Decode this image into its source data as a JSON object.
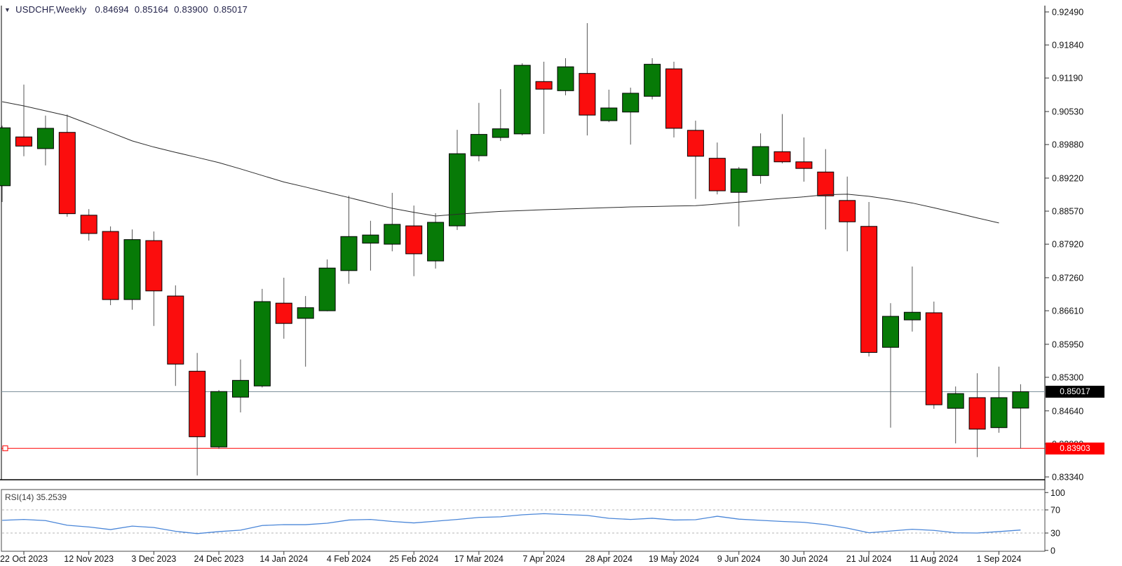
{
  "window": {
    "symbol_timeframe": "USDCHF,Weekly",
    "quote_open": "0.84694",
    "quote_high": "0.85164",
    "quote_low": "0.83900",
    "quote_close": "0.85017"
  },
  "chart_data": {
    "type": "candlestick",
    "title": "USDCHF,Weekly",
    "symbol": "USDCHF",
    "timeframe": "Weekly",
    "price_axis": {
      "ticks": [
        "0.92490",
        "0.91840",
        "0.91190",
        "0.90530",
        "0.89880",
        "0.89220",
        "0.88570",
        "0.87920",
        "0.87260",
        "0.86610",
        "0.85950",
        "0.85300",
        "0.84640",
        "0.83990",
        "0.83340"
      ],
      "max": 0.9249,
      "min": 0.8334
    },
    "bid_line": {
      "price": 0.85017,
      "label": "0.85017",
      "color": "#7d919c",
      "badge_bg": "#000000"
    },
    "level_line": {
      "price": 0.83903,
      "label": "0.83903",
      "color": "#ff0000",
      "badge_bg": "#ff0000"
    },
    "x_labels": [
      "22 Oct 2023",
      "12 Nov 2023",
      "3 Dec 2023",
      "24 Dec 2023",
      "14 Jan 2024",
      "4 Feb 2024",
      "25 Feb 2024",
      "17 Mar 2024",
      "7 Apr 2024",
      "28 Apr 2024",
      "19 May 2024",
      "9 Jun 2024",
      "30 Jun 2024",
      "21 Jul 2024",
      "11 Aug 2024",
      "1 Sep 2024"
    ],
    "x_label_first_index": 1,
    "x_label_every": 3,
    "candles": [
      {
        "date": "15 Oct 2023",
        "o": 0.8907,
        "h": 0.9025,
        "l": 0.8875,
        "c": 0.9021
      },
      {
        "date": "22 Oct 2023",
        "o": 0.9003,
        "h": 0.9106,
        "l": 0.8965,
        "c": 0.8985
      },
      {
        "date": "29 Oct 2023",
        "o": 0.898,
        "h": 0.9045,
        "l": 0.8947,
        "c": 0.902
      },
      {
        "date": "5 Nov 2023",
        "o": 0.9012,
        "h": 0.9047,
        "l": 0.8846,
        "c": 0.8852
      },
      {
        "date": "12 Nov 2023",
        "o": 0.8849,
        "h": 0.8861,
        "l": 0.8799,
        "c": 0.8813
      },
      {
        "date": "19 Nov 2023",
        "o": 0.8817,
        "h": 0.8827,
        "l": 0.8672,
        "c": 0.8683
      },
      {
        "date": "26 Nov 2023",
        "o": 0.8683,
        "h": 0.8821,
        "l": 0.8663,
        "c": 0.8801
      },
      {
        "date": "3 Dec 2023",
        "o": 0.8799,
        "h": 0.8817,
        "l": 0.8631,
        "c": 0.87
      },
      {
        "date": "10 Dec 2023",
        "o": 0.869,
        "h": 0.8711,
        "l": 0.8513,
        "c": 0.8556
      },
      {
        "date": "17 Dec 2023",
        "o": 0.8542,
        "h": 0.8578,
        "l": 0.8337,
        "c": 0.8413
      },
      {
        "date": "24 Dec 2023",
        "o": 0.8393,
        "h": 0.8505,
        "l": 0.8389,
        "c": 0.8502
      },
      {
        "date": "31 Dec 2023",
        "o": 0.8491,
        "h": 0.8565,
        "l": 0.8461,
        "c": 0.8524
      },
      {
        "date": "7 Jan 2024",
        "o": 0.8513,
        "h": 0.8704,
        "l": 0.851,
        "c": 0.8679
      },
      {
        "date": "14 Jan 2024",
        "o": 0.8676,
        "h": 0.8726,
        "l": 0.8606,
        "c": 0.8636
      },
      {
        "date": "21 Jan 2024",
        "o": 0.8646,
        "h": 0.869,
        "l": 0.8551,
        "c": 0.8667
      },
      {
        "date": "28 Jan 2024",
        "o": 0.8661,
        "h": 0.8762,
        "l": 0.866,
        "c": 0.8745
      },
      {
        "date": "4 Feb 2024",
        "o": 0.874,
        "h": 0.8887,
        "l": 0.8714,
        "c": 0.8807
      },
      {
        "date": "11 Feb 2024",
        "o": 0.8794,
        "h": 0.8838,
        "l": 0.874,
        "c": 0.881
      },
      {
        "date": "18 Feb 2024",
        "o": 0.8792,
        "h": 0.8893,
        "l": 0.8778,
        "c": 0.8831
      },
      {
        "date": "25 Feb 2024",
        "o": 0.8828,
        "h": 0.8868,
        "l": 0.8729,
        "c": 0.8773
      },
      {
        "date": "3 Mar 2024",
        "o": 0.8759,
        "h": 0.8853,
        "l": 0.8744,
        "c": 0.8835
      },
      {
        "date": "10 Mar 2024",
        "o": 0.8828,
        "h": 0.9017,
        "l": 0.882,
        "c": 0.897
      },
      {
        "date": "17 Mar 2024",
        "o": 0.8966,
        "h": 0.907,
        "l": 0.8955,
        "c": 0.9008
      },
      {
        "date": "24 Mar 2024",
        "o": 0.9002,
        "h": 0.9097,
        "l": 0.8995,
        "c": 0.9019
      },
      {
        "date": "31 Mar 2024",
        "o": 0.9009,
        "h": 0.9148,
        "l": 0.9006,
        "c": 0.9144
      },
      {
        "date": "7 Apr 2024",
        "o": 0.9112,
        "h": 0.9151,
        "l": 0.9009,
        "c": 0.9097
      },
      {
        "date": "14 Apr 2024",
        "o": 0.9094,
        "h": 0.9158,
        "l": 0.9085,
        "c": 0.9141
      },
      {
        "date": "21 Apr 2024",
        "o": 0.9128,
        "h": 0.9227,
        "l": 0.9006,
        "c": 0.9046
      },
      {
        "date": "28 Apr 2024",
        "o": 0.9035,
        "h": 0.9096,
        "l": 0.9032,
        "c": 0.906
      },
      {
        "date": "5 May 2024",
        "o": 0.9052,
        "h": 0.91,
        "l": 0.8988,
        "c": 0.9089
      },
      {
        "date": "12 May 2024",
        "o": 0.9083,
        "h": 0.9158,
        "l": 0.9077,
        "c": 0.9146
      },
      {
        "date": "19 May 2024",
        "o": 0.9137,
        "h": 0.9151,
        "l": 0.9002,
        "c": 0.902
      },
      {
        "date": "26 May 2024",
        "o": 0.9016,
        "h": 0.9035,
        "l": 0.8881,
        "c": 0.8965
      },
      {
        "date": "2 Jun 2024",
        "o": 0.8961,
        "h": 0.8992,
        "l": 0.889,
        "c": 0.8897
      },
      {
        "date": "9 Jun 2024",
        "o": 0.8894,
        "h": 0.8944,
        "l": 0.8827,
        "c": 0.894
      },
      {
        "date": "16 Jun 2024",
        "o": 0.8927,
        "h": 0.901,
        "l": 0.8911,
        "c": 0.8984
      },
      {
        "date": "23 Jun 2024",
        "o": 0.8974,
        "h": 0.9048,
        "l": 0.8951,
        "c": 0.8954
      },
      {
        "date": "30 Jun 2024",
        "o": 0.8954,
        "h": 0.9002,
        "l": 0.8915,
        "c": 0.8941
      },
      {
        "date": "7 Jul 2024",
        "o": 0.8934,
        "h": 0.8979,
        "l": 0.8821,
        "c": 0.8887
      },
      {
        "date": "14 Jul 2024",
        "o": 0.8878,
        "h": 0.8925,
        "l": 0.8778,
        "c": 0.8836
      },
      {
        "date": "21 Jul 2024",
        "o": 0.8827,
        "h": 0.8875,
        "l": 0.8571,
        "c": 0.8579
      },
      {
        "date": "28 Jul 2024",
        "o": 0.8589,
        "h": 0.8676,
        "l": 0.8431,
        "c": 0.865
      },
      {
        "date": "4 Aug 2024",
        "o": 0.8643,
        "h": 0.8748,
        "l": 0.862,
        "c": 0.8658
      },
      {
        "date": "11 Aug 2024",
        "o": 0.8657,
        "h": 0.8679,
        "l": 0.8468,
        "c": 0.8476
      },
      {
        "date": "18 Aug 2024",
        "o": 0.8469,
        "h": 0.8512,
        "l": 0.84,
        "c": 0.8498
      },
      {
        "date": "25 Aug 2024",
        "o": 0.849,
        "h": 0.8538,
        "l": 0.8373,
        "c": 0.8428
      },
      {
        "date": "1 Sep 2024",
        "o": 0.8431,
        "h": 0.8551,
        "l": 0.8421,
        "c": 0.849
      },
      {
        "date": "8 Sep 2024",
        "o": 0.84694,
        "h": 0.85164,
        "l": 0.839,
        "c": 0.85017
      }
    ],
    "moving_average": {
      "color": "#2b2b2b",
      "values": [
        0.90723,
        0.9064,
        0.90544,
        0.90447,
        0.90285,
        0.90119,
        0.89952,
        0.89831,
        0.89727,
        0.89627,
        0.89525,
        0.89401,
        0.89272,
        0.89143,
        0.89044,
        0.8894,
        0.88837,
        0.88731,
        0.88625,
        0.88546,
        0.88474,
        0.88508,
        0.8854,
        0.88565,
        0.88581,
        0.88598,
        0.88612,
        0.88626,
        0.88639,
        0.88653,
        0.88661,
        0.8867,
        0.88678,
        0.8871,
        0.88748,
        0.88787,
        0.8882,
        0.88851,
        0.88893,
        0.88904,
        0.88862,
        0.88802,
        0.8873,
        0.88636,
        0.88538,
        0.88436,
        0.88338,
        null
      ]
    },
    "rsi": {
      "label": "RSI(14)",
      "value": "35.2539",
      "levels": [
        "100",
        "70",
        "30",
        "0"
      ],
      "dashed_levels": [
        70,
        30
      ],
      "line_color": "#4a86d8",
      "series": [
        52,
        53.5,
        51.5,
        43.5,
        40.5,
        36,
        42,
        39.5,
        33,
        29,
        32.5,
        35,
        43,
        44.5,
        44.5,
        47,
        52.5,
        53.5,
        50,
        47.5,
        50.5,
        53.5,
        57,
        58,
        61.5,
        63.5,
        62,
        60.5,
        55.5,
        53.5,
        55.5,
        52.5,
        53,
        59,
        54,
        52,
        50,
        48.5,
        44.5,
        38.5,
        30.5,
        33.5,
        36.5,
        34.5,
        30.5,
        30,
        32.5,
        35.2539
      ]
    },
    "colors": {
      "bull": "#077a07",
      "bear": "#fb0d0d",
      "candle_border": "#000000",
      "wick": "#555555",
      "axis_text": "#111111",
      "frame": "#000000",
      "rsi_grid": "#b5b5b5",
      "pane_border": "#4a4a4a"
    }
  }
}
